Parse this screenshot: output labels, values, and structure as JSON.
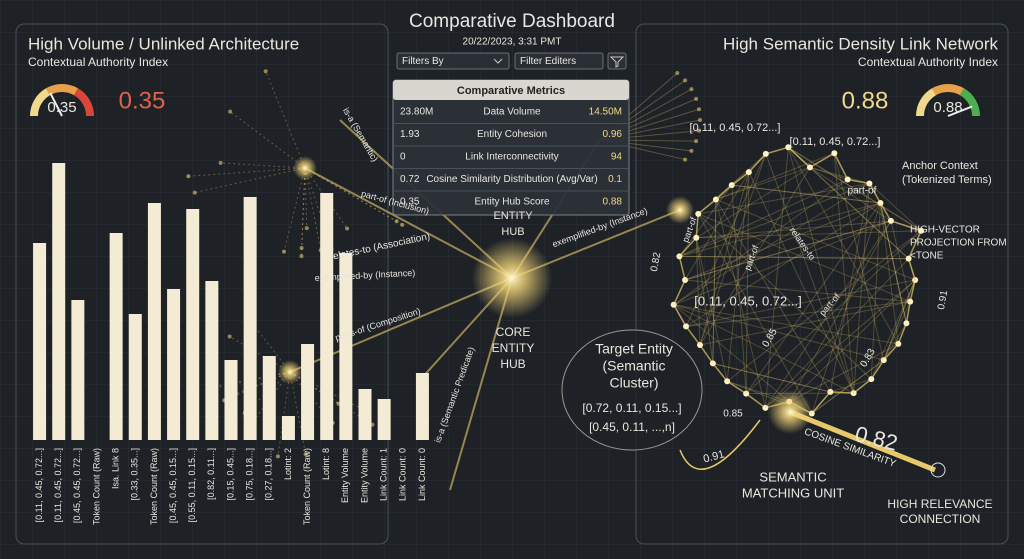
{
  "header": {
    "title": "Comparative Dashboard",
    "timestamp": "20/22/2023, 3:31 PMT",
    "filters": [
      "Filters By",
      "Filter Editers"
    ]
  },
  "left_panel": {
    "title": "High Volume / Unlinked Architecture",
    "subtitle": "Contextual Authority Index"
  },
  "right_panel": {
    "title": "High Semantic Density Link Network",
    "subtitle": "Contextual Authority Index"
  },
  "metrics": {
    "title": "Comparative Metrics",
    "rows": [
      [
        "23.80M",
        "Data Volume",
        "14.50M"
      ],
      [
        "1.93",
        "Entity Cohesion",
        "0.96"
      ],
      [
        "0",
        "Link Interconnectivity",
        "94"
      ],
      [
        "0.72",
        "Cosine Similarity Distribution (Avg/Var)",
        "0.1"
      ],
      [
        "0.35",
        "Entity Hub Score",
        "0.88"
      ]
    ]
  },
  "chart_data": [
    {
      "type": "gauge",
      "value": 0.35,
      "lim": [
        0,
        1
      ],
      "color": "#e0614a"
    },
    {
      "type": "gauge",
      "value": 0.88,
      "lim": [
        0,
        1
      ],
      "color": "#f0d98a"
    },
    {
      "type": "bar",
      "categories": [
        "[0.11, 0.45, 0.72...]",
        "[0.11, 0.45, 0.72...]",
        "[0.45, 0.45, 0.72...]",
        "Token Count (Raw)",
        "Isa. Link 8",
        "[0.33, 0.35...]",
        "Token Count (Raw)",
        "[0.45, 0.45, 0.15...]",
        "[0.55, 0.11, 0.15...]",
        "[0.82, 0.11...]",
        "[0.15, 0.45...]",
        "[0.75, 0.18...]",
        "[0.27, 0.18...]",
        "Lotint: 2",
        "Token Count (Raw)",
        "Lotint: 8",
        "Entity Volume",
        "Entity Volume",
        "Link Count: 1",
        "Link Count: 0",
        "Link Count: 0"
      ],
      "values": [
        197,
        277,
        140,
        0,
        207,
        126,
        237,
        151,
        231,
        159,
        80,
        243,
        84,
        24,
        96,
        247,
        187,
        51,
        41,
        0,
        67
      ],
      "ylim": [
        0,
        300
      ],
      "color": "#f3ebd3"
    }
  ],
  "diagram": {
    "core_hub": [
      "CORE",
      "ENTITY",
      "HUB"
    ],
    "entity_hub": [
      "ENTITY",
      "HUB"
    ],
    "target": [
      "Target Entity",
      "(Semantic",
      "Cluster)"
    ],
    "target_vectors": [
      "[0.72, 0.11, 0.15...]",
      "[0.45, 0.11, ...,n]"
    ],
    "center_vector": "[0.11,  0.45,  0.72...]",
    "top_vectors": [
      "[0.11, 0.45, 0.72...]",
      "[0.11, 0.45, 0.72...]"
    ],
    "anchor": [
      "Anchor Context",
      "(Tokenized Terms)"
    ],
    "projection": [
      "HIGH-VECTOR",
      "PROJECTION FROM",
      "<TONE"
    ],
    "matching": [
      "SEMANTIC",
      "MATCHING UNIT"
    ],
    "relevance": [
      "HIGH RELEVANCE",
      "CONNECTION"
    ],
    "big_score": "0.82",
    "cosine": "COSINE SIMILARITY",
    "left_edges": [
      "is-a (Semantic)",
      "part-of (Inclusion)",
      "relates-to (Association)",
      "exemplified-by (Instance)",
      "parts-of (Composition)",
      "is-a (Semantic Predicate)"
    ],
    "right_edges": [
      "exemplified-by (Instance)",
      "part-of",
      "part-of",
      "relates-to",
      "part-of",
      "part-of"
    ],
    "weights": [
      "0.82",
      "0.85",
      "0.83",
      "0.91",
      "0.85",
      "0.91"
    ]
  }
}
